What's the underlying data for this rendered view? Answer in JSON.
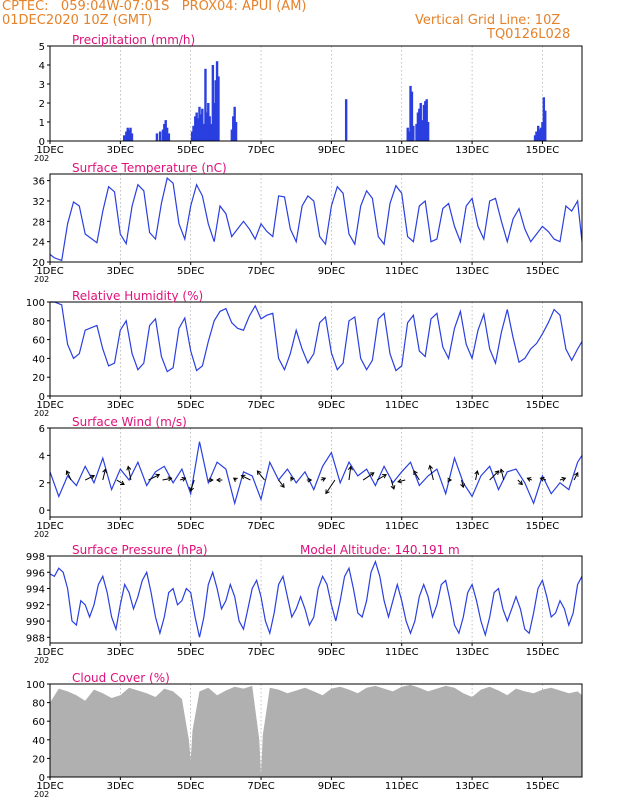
{
  "header": {
    "line1_left": "CPTEC:   059:04W-07:01S   PROX04: APUI (AM)",
    "line2_left": "01DEC2020 10Z (GMT)",
    "line1_right": "Vertical Grid Line: 10Z",
    "line2_right": "TQ0126L028"
  },
  "colors": {
    "header": "#e5822a",
    "panel_title": "#e0107a",
    "line": "#2a3fe0",
    "bar": "#2a3fe0",
    "cloud": "#b0b0b0",
    "grid": "#9a9a9a",
    "axis": "#000000"
  },
  "x_axis": {
    "tick_labels": [
      "1DEC",
      "3DEC",
      "5DEC",
      "7DEC",
      "9DEC",
      "11DEC",
      "13DEC",
      "15DEC"
    ],
    "tick_days": [
      0,
      2,
      4,
      6,
      8,
      10,
      12,
      14
    ],
    "range_days": [
      0,
      15.125
    ],
    "vertical_grid_line": "10Z",
    "under_label_fragment": "202"
  },
  "chart_data": [
    {
      "type": "bar",
      "title": "Precipitation (mm/h)",
      "ylim": [
        0,
        5
      ],
      "yticks": [
        0,
        1,
        2,
        3,
        4,
        5
      ],
      "x": [
        2.11,
        2.17,
        2.21,
        2.25,
        2.29,
        2.33,
        3.04,
        3.13,
        3.21,
        3.25,
        3.29,
        3.33,
        3.38,
        4.04,
        4.08,
        4.13,
        4.17,
        4.21,
        4.25,
        4.29,
        4.33,
        4.38,
        4.42,
        4.46,
        4.5,
        4.54,
        4.58,
        4.63,
        4.67,
        4.71,
        4.75,
        4.79,
        5.17,
        5.21,
        5.25,
        5.29,
        8.42,
        10.17,
        10.21,
        10.25,
        10.29,
        10.33,
        10.42,
        10.46,
        10.5,
        10.54,
        10.58,
        10.63,
        10.67,
        10.71,
        10.75,
        13.79,
        13.83,
        13.88,
        13.92,
        13.96,
        14.0,
        14.04,
        14.08
      ],
      "values": [
        0.3,
        0.5,
        0.7,
        0.6,
        0.7,
        0.4,
        0.4,
        0.5,
        0.6,
        0.9,
        1.1,
        0.7,
        0.4,
        0.5,
        0.8,
        1.3,
        1.5,
        1.2,
        1.8,
        1.4,
        1.7,
        0.9,
        3.8,
        1.5,
        2.0,
        1.3,
        0.9,
        4.0,
        2.0,
        3.2,
        4.2,
        3.4,
        0.6,
        1.3,
        1.8,
        1.0,
        2.2,
        0.7,
        0.5,
        2.9,
        2.6,
        0.8,
        0.9,
        1.5,
        1.7,
        2.0,
        1.1,
        1.9,
        2.1,
        2.2,
        1.0,
        0.3,
        0.5,
        0.8,
        0.6,
        0.7,
        1.0,
        2.3,
        1.6
      ]
    },
    {
      "type": "line",
      "title": "Surface Temperature (nC)",
      "ylim": [
        20,
        37.3
      ],
      "yticks": [
        20,
        24,
        28,
        32,
        36
      ],
      "x": [
        0.0,
        0.125,
        0.333,
        0.5,
        0.667,
        0.833,
        1.0,
        1.333,
        1.5,
        1.667,
        1.833,
        2.0,
        2.167,
        2.333,
        2.5,
        2.667,
        2.833,
        3.0,
        3.167,
        3.333,
        3.5,
        3.667,
        3.833,
        4.0,
        4.167,
        4.333,
        4.5,
        4.667,
        4.833,
        5.0,
        5.167,
        5.333,
        5.5,
        5.667,
        5.833,
        6.0,
        6.167,
        6.333,
        6.5,
        6.667,
        6.833,
        7.0,
        7.167,
        7.333,
        7.5,
        7.667,
        7.833,
        8.0,
        8.167,
        8.333,
        8.5,
        8.667,
        8.833,
        9.0,
        9.167,
        9.333,
        9.5,
        9.667,
        9.833,
        10.0,
        10.167,
        10.333,
        10.5,
        10.667,
        10.833,
        11.0,
        11.167,
        11.333,
        11.5,
        11.667,
        11.833,
        12.0,
        12.167,
        12.333,
        12.5,
        12.667,
        12.833,
        13.0,
        13.167,
        13.333,
        13.5,
        13.667,
        13.833,
        14.0,
        14.167,
        14.333,
        14.5,
        14.667,
        14.833,
        15.0,
        15.125
      ],
      "y": [
        21.5,
        20.8,
        20.3,
        27.5,
        31.8,
        31.0,
        25.5,
        23.8,
        30.0,
        34.8,
        33.8,
        25.5,
        23.6,
        31.0,
        35.2,
        34.0,
        25.8,
        24.5,
        31.5,
        36.5,
        35.5,
        27.5,
        24.5,
        31.0,
        35.2,
        33.0,
        27.5,
        24.0,
        31.0,
        29.5,
        25.0,
        26.5,
        28.0,
        26.5,
        24.5,
        27.5,
        26.0,
        25.0,
        33.0,
        32.8,
        26.5,
        24.0,
        31.0,
        33.0,
        32.0,
        25.0,
        23.5,
        31.0,
        34.8,
        33.5,
        25.5,
        23.5,
        31.0,
        34.0,
        32.5,
        25.0,
        23.5,
        31.5,
        35.0,
        33.5,
        25.0,
        24.0,
        31.0,
        32.0,
        24.0,
        24.5,
        30.5,
        31.5,
        27.0,
        24.0,
        31.0,
        32.5,
        27.0,
        24.5,
        32.0,
        32.5,
        28.0,
        24.0,
        28.5,
        30.5,
        26.5,
        24.0,
        25.5,
        27.0,
        26.0,
        24.5,
        24.0,
        31.0,
        30.0,
        32.0,
        24.0
      ]
    },
    {
      "type": "line",
      "title": "Relative Humidity (%)",
      "ylim": [
        0,
        100
      ],
      "yticks": [
        0,
        20,
        40,
        60,
        80,
        100
      ],
      "x": [
        0.0,
        0.125,
        0.333,
        0.5,
        0.667,
        0.833,
        1.0,
        1.333,
        1.5,
        1.667,
        1.833,
        2.0,
        2.167,
        2.333,
        2.5,
        2.667,
        2.833,
        3.0,
        3.167,
        3.333,
        3.5,
        3.667,
        3.833,
        4.0,
        4.167,
        4.333,
        4.5,
        4.667,
        4.833,
        5.0,
        5.167,
        5.333,
        5.5,
        5.667,
        5.833,
        6.0,
        6.167,
        6.333,
        6.5,
        6.667,
        6.833,
        7.0,
        7.167,
        7.333,
        7.5,
        7.667,
        7.833,
        8.0,
        8.167,
        8.333,
        8.5,
        8.667,
        8.833,
        9.0,
        9.167,
        9.333,
        9.5,
        9.667,
        9.833,
        10.0,
        10.167,
        10.333,
        10.5,
        10.667,
        10.833,
        11.0,
        11.167,
        11.333,
        11.5,
        11.667,
        11.833,
        12.0,
        12.167,
        12.333,
        12.5,
        12.667,
        12.833,
        13.0,
        13.167,
        13.333,
        13.5,
        13.667,
        13.833,
        14.0,
        14.167,
        14.333,
        14.5,
        14.667,
        14.833,
        15.0,
        15.125
      ],
      "y": [
        100,
        100,
        97,
        55,
        40,
        45,
        70,
        75,
        50,
        32,
        35,
        70,
        80,
        45,
        28,
        35,
        75,
        82,
        42,
        26,
        30,
        72,
        83,
        48,
        27,
        32,
        58,
        80,
        90,
        93,
        78,
        72,
        70,
        85,
        96,
        82,
        86,
        88,
        40,
        28,
        45,
        70,
        50,
        35,
        45,
        78,
        84,
        46,
        28,
        35,
        80,
        84,
        40,
        28,
        38,
        82,
        88,
        45,
        27,
        32,
        78,
        86,
        48,
        42,
        82,
        88,
        52,
        40,
        72,
        90,
        55,
        40,
        70,
        87,
        50,
        35,
        68,
        92,
        62,
        36,
        40,
        50,
        56,
        66,
        78,
        92,
        86,
        50,
        38,
        50,
        58
      ]
    },
    {
      "type": "line",
      "title": "Surface Wind (m/s)",
      "ylim": [
        -0.5,
        6
      ],
      "yticks": [
        0,
        2,
        4,
        6
      ],
      "x": [
        0.0,
        0.25,
        0.5,
        0.75,
        1.0,
        1.25,
        1.5,
        1.75,
        2.0,
        2.25,
        2.5,
        2.75,
        3.0,
        3.25,
        3.5,
        3.75,
        4.0,
        4.25,
        4.5,
        4.75,
        5.0,
        5.25,
        5.5,
        5.75,
        6.0,
        6.25,
        6.5,
        6.75,
        7.0,
        7.25,
        7.5,
        7.75,
        8.0,
        8.25,
        8.5,
        8.75,
        9.0,
        9.25,
        9.5,
        9.75,
        10.0,
        10.25,
        10.5,
        10.75,
        11.0,
        11.25,
        11.5,
        11.75,
        12.0,
        12.25,
        12.5,
        12.75,
        13.0,
        13.25,
        13.5,
        13.75,
        14.0,
        14.25,
        14.5,
        14.75,
        15.0,
        15.125
      ],
      "y": [
        2.8,
        1.0,
        2.5,
        1.8,
        3.2,
        2.0,
        3.8,
        1.5,
        3.0,
        2.2,
        3.5,
        1.8,
        2.8,
        3.2,
        2.0,
        3.0,
        1.2,
        5.0,
        2.0,
        3.5,
        3.0,
        0.5,
        2.8,
        2.5,
        0.8,
        3.5,
        2.2,
        3.0,
        2.0,
        2.8,
        1.5,
        3.2,
        4.2,
        2.0,
        3.5,
        2.5,
        3.0,
        1.8,
        3.2,
        2.0,
        2.8,
        3.5,
        1.8,
        2.5,
        3.0,
        1.2,
        3.8,
        2.0,
        1.0,
        2.5,
        3.2,
        1.5,
        2.8,
        3.0,
        2.0,
        0.5,
        2.5,
        1.2,
        2.0,
        1.5,
        3.5,
        4.0
      ],
      "wind_vectors": [
        {
          "x": 0.6,
          "u": -0.5,
          "v": 1.0
        },
        {
          "x": 1.0,
          "u": 1.0,
          "v": 0.5
        },
        {
          "x": 1.5,
          "u": 0.3,
          "v": 1.2
        },
        {
          "x": 1.9,
          "u": 0.8,
          "v": -0.5
        },
        {
          "x": 2.3,
          "u": -0.3,
          "v": 1.5
        },
        {
          "x": 2.8,
          "u": 1.2,
          "v": 0.6
        },
        {
          "x": 3.2,
          "u": 1.0,
          "v": 0.2
        },
        {
          "x": 3.7,
          "u": 0.6,
          "v": 0.2
        },
        {
          "x": 4.1,
          "u": -0.4,
          "v": -1.2
        },
        {
          "x": 4.5,
          "u": 0.5,
          "v": 0.0
        },
        {
          "x": 4.9,
          "u": -0.6,
          "v": 0.0
        },
        {
          "x": 5.3,
          "u": -0.3,
          "v": 0.2
        },
        {
          "x": 5.7,
          "u": -1.0,
          "v": 0.5
        },
        {
          "x": 6.1,
          "u": -0.8,
          "v": 1.0
        },
        {
          "x": 6.5,
          "u": 0.6,
          "v": -0.8
        },
        {
          "x": 6.9,
          "u": -0.2,
          "v": 0.3
        },
        {
          "x": 7.3,
          "u": 0.5,
          "v": 0.0
        },
        {
          "x": 7.7,
          "u": 0.5,
          "v": 0.2
        },
        {
          "x": 8.1,
          "u": -1.0,
          "v": -1.5
        },
        {
          "x": 8.5,
          "u": 0.2,
          "v": 1.5
        },
        {
          "x": 8.9,
          "u": 1.2,
          "v": 0.8
        },
        {
          "x": 9.3,
          "u": 1.0,
          "v": 0.6
        },
        {
          "x": 9.7,
          "u": 0.3,
          "v": -1.0
        },
        {
          "x": 10.1,
          "u": -0.8,
          "v": -0.2
        },
        {
          "x": 10.5,
          "u": -0.6,
          "v": 1.0
        },
        {
          "x": 10.9,
          "u": -0.4,
          "v": 1.6
        },
        {
          "x": 11.3,
          "u": 0.4,
          "v": 0.0
        },
        {
          "x": 11.7,
          "u": 0.2,
          "v": -0.8
        },
        {
          "x": 12.1,
          "u": 0.2,
          "v": 1.0
        },
        {
          "x": 12.5,
          "u": 1.0,
          "v": 1.0
        },
        {
          "x": 12.9,
          "u": -0.3,
          "v": 1.2
        },
        {
          "x": 13.3,
          "u": 0.5,
          "v": -0.5
        },
        {
          "x": 13.7,
          "u": -0.5,
          "v": 0.2
        },
        {
          "x": 14.1,
          "u": -0.6,
          "v": 0.2
        },
        {
          "x": 14.5,
          "u": 0.6,
          "v": 0.2
        },
        {
          "x": 14.9,
          "u": 0.4,
          "v": 0.8
        }
      ]
    },
    {
      "type": "line",
      "title": "Surface Pressure (hPa)",
      "annotation": "Model Altitude: 140.191 m",
      "ylim": [
        987.3,
        998
      ],
      "yticks": [
        988,
        990,
        992,
        994,
        996,
        998
      ],
      "x": [
        0.0,
        0.125,
        0.25,
        0.375,
        0.5,
        0.625,
        0.75,
        0.875,
        1.0,
        1.125,
        1.25,
        1.375,
        1.5,
        1.625,
        1.75,
        1.875,
        2.0,
        2.125,
        2.25,
        2.375,
        2.5,
        2.625,
        2.75,
        2.875,
        3.0,
        3.125,
        3.25,
        3.375,
        3.5,
        3.625,
        3.75,
        3.875,
        4.0,
        4.125,
        4.25,
        4.375,
        4.5,
        4.625,
        4.75,
        4.875,
        5.0,
        5.125,
        5.25,
        5.375,
        5.5,
        5.625,
        5.75,
        5.875,
        6.0,
        6.125,
        6.25,
        6.375,
        6.5,
        6.625,
        6.75,
        6.875,
        7.0,
        7.125,
        7.25,
        7.375,
        7.5,
        7.625,
        7.75,
        7.875,
        8.0,
        8.125,
        8.25,
        8.375,
        8.5,
        8.625,
        8.75,
        8.875,
        9.0,
        9.125,
        9.25,
        9.375,
        9.5,
        9.625,
        9.75,
        9.875,
        10.0,
        10.125,
        10.25,
        10.375,
        10.5,
        10.625,
        10.75,
        10.875,
        11.0,
        11.125,
        11.25,
        11.375,
        11.5,
        11.625,
        11.75,
        11.875,
        12.0,
        12.125,
        12.25,
        12.375,
        12.5,
        12.625,
        12.75,
        12.875,
        13.0,
        13.125,
        13.25,
        13.375,
        13.5,
        13.625,
        13.75,
        13.875,
        14.0,
        14.125,
        14.25,
        14.375,
        14.5,
        14.625,
        14.75,
        14.875,
        15.0,
        15.125
      ],
      "y": [
        995.8,
        995.5,
        996.5,
        996.0,
        994.0,
        990.0,
        989.5,
        992.5,
        992.0,
        990.5,
        992.0,
        994.5,
        995.5,
        993.5,
        990.5,
        989.0,
        992.0,
        994.5,
        993.5,
        991.5,
        993.0,
        995.0,
        996.0,
        993.5,
        990.5,
        988.5,
        990.5,
        993.5,
        994.0,
        992.0,
        992.5,
        994.0,
        993.5,
        990.5,
        988.0,
        990.5,
        994.5,
        996.0,
        994.0,
        991.5,
        992.5,
        994.5,
        993.0,
        990.0,
        989.0,
        991.5,
        994.0,
        995.0,
        993.0,
        990.0,
        988.5,
        991.0,
        994.5,
        995.5,
        993.0,
        990.5,
        991.5,
        993.0,
        991.5,
        989.5,
        990.5,
        994.0,
        995.5,
        994.5,
        992.0,
        990.0,
        992.5,
        995.5,
        996.5,
        994.0,
        991.0,
        990.5,
        992.5,
        996.0,
        997.3,
        995.5,
        992.5,
        990.5,
        992.5,
        994.5,
        992.5,
        990.0,
        988.5,
        990.0,
        993.0,
        994.5,
        993.0,
        990.5,
        992.0,
        994.5,
        995.0,
        992.5,
        989.5,
        988.5,
        990.5,
        993.5,
        994.5,
        992.5,
        990.0,
        988.3,
        990.5,
        993.5,
        994.0,
        991.5,
        990.0,
        991.5,
        993.0,
        991.5,
        989.0,
        988.5,
        991.0,
        994.0,
        995.0,
        993.0,
        990.5,
        991.0,
        992.5,
        991.5,
        989.5,
        991.0,
        994.5,
        995.5
      ]
    },
    {
      "type": "area",
      "title": "Cloud Cover (%)",
      "ylim": [
        0,
        100
      ],
      "yticks": [
        0,
        20,
        40,
        60,
        80,
        100
      ],
      "x": [
        0.0,
        0.25,
        0.5,
        0.75,
        1.0,
        1.25,
        1.5,
        1.75,
        2.0,
        2.25,
        2.5,
        2.75,
        3.0,
        3.25,
        3.5,
        3.75,
        3.95,
        4.0,
        4.05,
        4.25,
        4.5,
        4.75,
        5.0,
        5.25,
        5.5,
        5.75,
        5.95,
        6.0,
        6.05,
        6.25,
        6.5,
        6.75,
        7.0,
        7.25,
        7.5,
        7.75,
        8.0,
        8.25,
        8.5,
        8.75,
        9.0,
        9.25,
        9.5,
        9.75,
        10.0,
        10.25,
        10.5,
        10.75,
        11.0,
        11.25,
        11.5,
        11.75,
        12.0,
        12.25,
        12.5,
        12.75,
        13.0,
        13.25,
        13.5,
        13.75,
        14.0,
        14.25,
        14.5,
        14.75,
        15.0,
        15.125
      ],
      "y": [
        80,
        95,
        92,
        88,
        82,
        94,
        90,
        85,
        88,
        96,
        93,
        90,
        86,
        95,
        92,
        84,
        40,
        18,
        50,
        92,
        96,
        88,
        93,
        97,
        95,
        98,
        40,
        2,
        45,
        96,
        94,
        90,
        93,
        96,
        92,
        88,
        95,
        97,
        94,
        90,
        96,
        98,
        95,
        92,
        97,
        99,
        96,
        92,
        95,
        98,
        96,
        90,
        86,
        94,
        97,
        93,
        88,
        95,
        92,
        90,
        94,
        96,
        93,
        90,
        92,
        88
      ]
    }
  ]
}
